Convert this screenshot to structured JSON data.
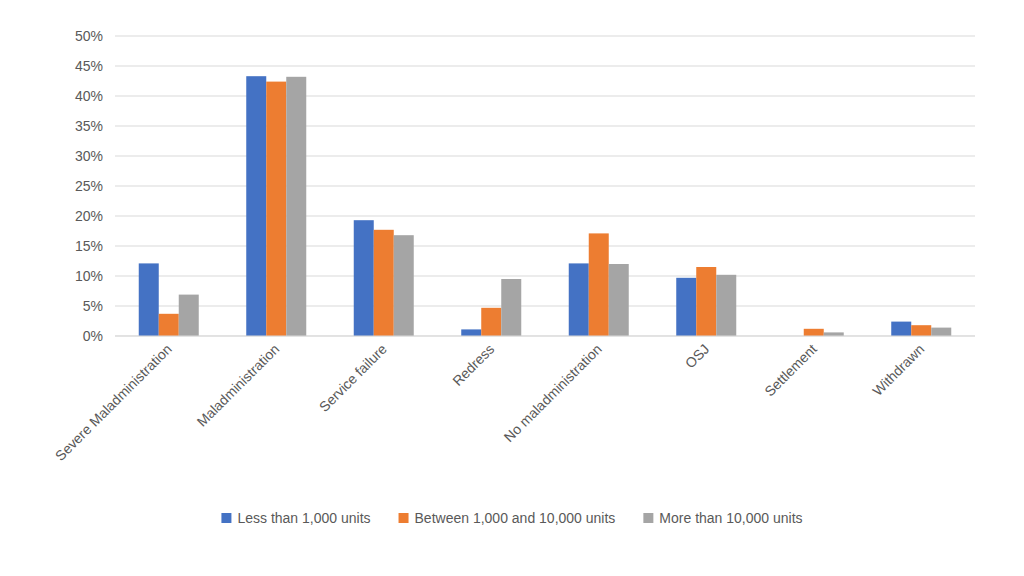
{
  "chart_data": {
    "type": "bar",
    "categories": [
      "Severe Maladministration",
      "Maladministration",
      "Service failure",
      "Redress",
      "No maladministration",
      "OSJ",
      "Settlement",
      "Withdrawn"
    ],
    "series": [
      {
        "name": "Less than 1,000 units",
        "color": "#4472c4",
        "values": [
          12.1,
          43.3,
          19.3,
          1.1,
          12.1,
          9.7,
          0,
          2.4
        ]
      },
      {
        "name": "Between 1,000 and 10,000 units",
        "color": "#ed7d31",
        "values": [
          3.7,
          42.4,
          17.7,
          4.7,
          17.1,
          11.5,
          1.2,
          1.8
        ]
      },
      {
        "name": "More than 10,000 units",
        "color": "#a5a5a5",
        "values": [
          6.9,
          43.2,
          16.8,
          9.5,
          12.0,
          10.2,
          0.6,
          1.4
        ]
      }
    ],
    "ylim": [
      0,
      50
    ],
    "yticks": [
      {
        "value": 0,
        "label": "0%"
      },
      {
        "value": 5,
        "label": "5%"
      },
      {
        "value": 10,
        "label": "10%"
      },
      {
        "value": 15,
        "label": "15%"
      },
      {
        "value": 20,
        "label": "20%"
      },
      {
        "value": 25,
        "label": "25%"
      },
      {
        "value": 30,
        "label": "30%"
      },
      {
        "value": 35,
        "label": "35%"
      },
      {
        "value": 40,
        "label": "40%"
      },
      {
        "value": 45,
        "label": "45%"
      },
      {
        "value": 50,
        "label": "50%"
      }
    ],
    "grid": true,
    "legend": "bottom"
  }
}
